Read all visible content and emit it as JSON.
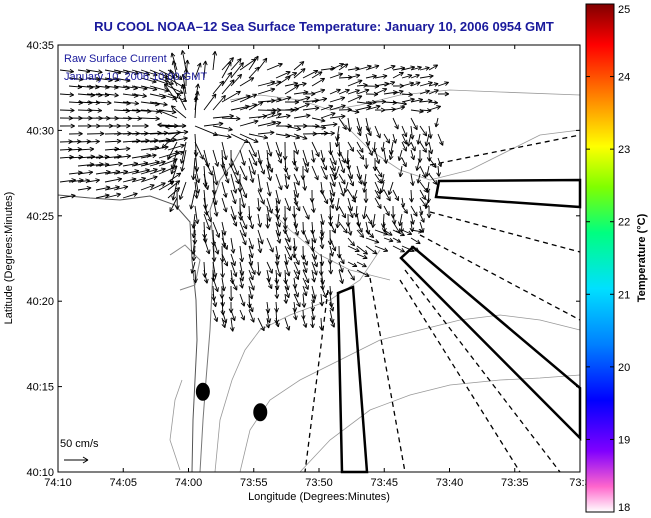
{
  "chart_data": {
    "type": "vector-field",
    "title": "RU COOL  NOAA–12  Sea Surface Temperature:  January 10, 2006 0954 GMT",
    "annotation_line1": "Raw Surface Current",
    "annotation_line2": "January 10, 2006 10:00 GMT",
    "xlabel": "Longitude (Degrees:Minutes)",
    "ylabel": "Latitude (Degrees:Minutes)",
    "x_ticks": [
      "74:10",
      "74:05",
      "74:00",
      "73:55",
      "73:50",
      "73:45",
      "73:40",
      "73:35",
      "73:3"
    ],
    "y_ticks": [
      "40:35",
      "40:30",
      "40:25",
      "40:20",
      "40:15",
      "40:10"
    ],
    "xlim_minutes": [
      -10,
      30
    ],
    "ylim_minutes": [
      10,
      35
    ],
    "scale_label": "50 cm/s",
    "colorbar": {
      "label": "Temperature (°C)",
      "ticks": [
        "25",
        "24",
        "23",
        "22",
        "21",
        "20",
        "19",
        "18"
      ],
      "range": [
        18,
        25
      ],
      "colors": [
        "#ff66cc",
        "#8000ff",
        "#0000ff",
        "#0080ff",
        "#00e0ff",
        "#00ff80",
        "#80ff00",
        "#ffff00",
        "#ff8000",
        "#ff0000",
        "#800000"
      ]
    },
    "buoys": [
      {
        "lon_min": 1.1,
        "lat_min": 14.7
      },
      {
        "lon_min": 5.5,
        "lat_min": 13.5
      }
    ],
    "vector_field": {
      "description": "Surface current vectors radiating from Ambrose area; dense field over upper portion of domain",
      "center_lon_min": 0.3,
      "center_lat_min": 30.3
    },
    "grid": false
  }
}
